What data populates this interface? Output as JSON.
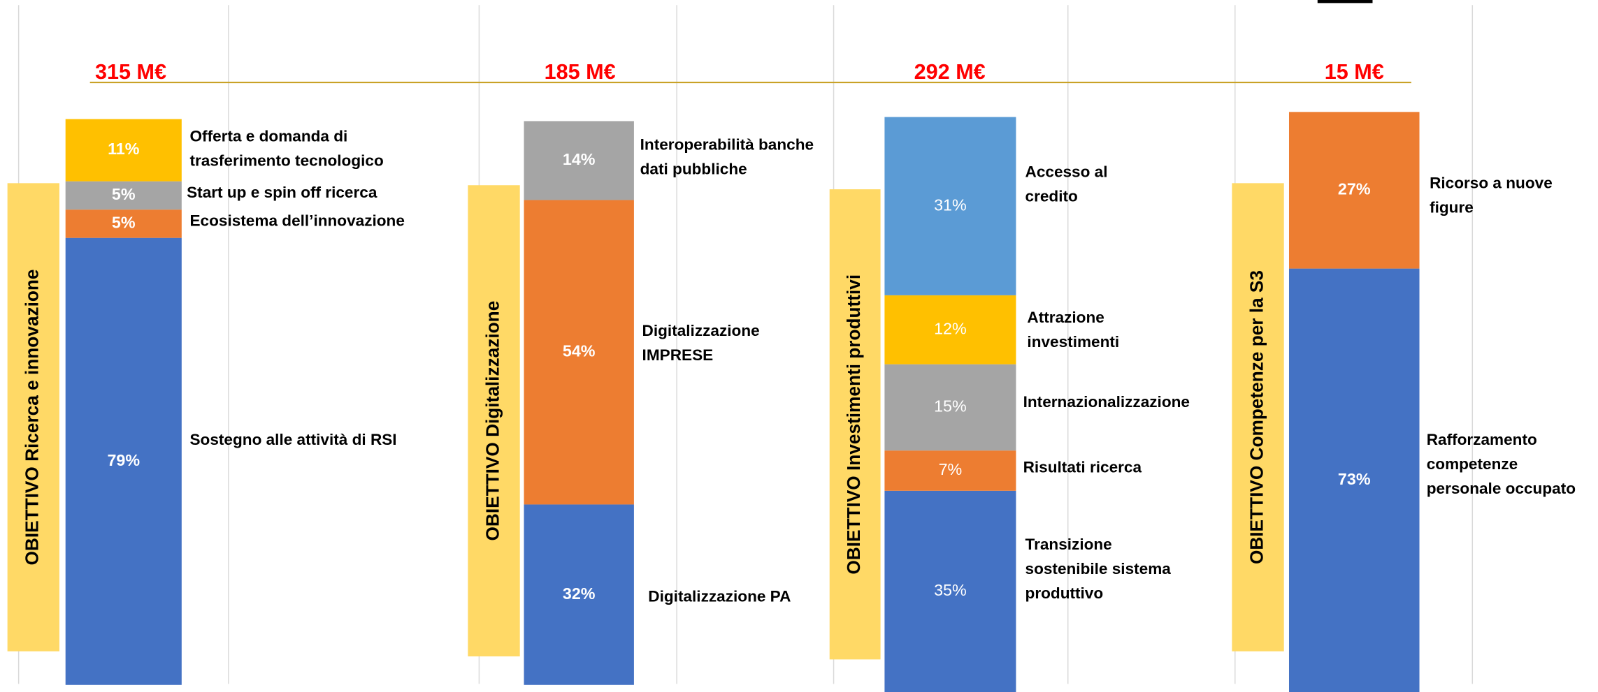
{
  "chart_data": [
    {
      "type": "stacked_bar",
      "title": "315 M€",
      "objective": "OBIETTIVO Ricerca e innovazione",
      "series": [
        {
          "name": [
            "Sostegno alle attività di RSI"
          ],
          "color": "#4472c4",
          "values": [
            79
          ],
          "value_labels": [
            "79%"
          ]
        },
        {
          "name": [
            "Ecosistema dell’innovazione"
          ],
          "color": "#ed7d31",
          "values": [
            5
          ],
          "value_labels": [
            "5%"
          ]
        },
        {
          "name": [
            "Start up e spin off ricerca"
          ],
          "color": "#a5a5a5",
          "values": [
            5
          ],
          "value_labels": [
            "5%"
          ]
        },
        {
          "name": [
            "Offerta e domanda di",
            "trasferimento tecnologico"
          ],
          "color": "#ffc000",
          "values": [
            11
          ],
          "value_labels": [
            "11%"
          ]
        }
      ]
    },
    {
      "type": "stacked_bar",
      "title": "185 M€",
      "objective": "OBIETTIVO Digitalizzazione",
      "series": [
        {
          "name": [
            "Digitalizzazione PA"
          ],
          "color": "#4472c4",
          "values": [
            32
          ],
          "value_labels": [
            "32%"
          ]
        },
        {
          "name": [
            "Digitalizzazione",
            "IMPRESE"
          ],
          "color": "#ed7d31",
          "values": [
            54
          ],
          "value_labels": [
            "54%"
          ]
        },
        {
          "name": [
            "Interoperabilità banche",
            "dati pubbliche"
          ],
          "color": "#a5a5a5",
          "values": [
            14
          ],
          "value_labels": [
            "14%"
          ]
        }
      ]
    },
    {
      "type": "stacked_bar",
      "title": "292 M€",
      "objective": "OBIETTIVO Investimenti produttivi",
      "series": [
        {
          "name": [
            "Transizione",
            "sostenibile sistema",
            "produttivo"
          ],
          "color": "#4472c4",
          "values": [
            35
          ],
          "value_labels": [
            "35%"
          ]
        },
        {
          "name": [
            "Risultati ricerca"
          ],
          "color": "#ed7d31",
          "values": [
            7
          ],
          "value_labels": [
            "7%"
          ]
        },
        {
          "name": [
            "Internazionalizzazione"
          ],
          "color": "#a5a5a5",
          "values": [
            15
          ],
          "value_labels": [
            "15%"
          ]
        },
        {
          "name": [
            "Attrazione",
            "investimenti"
          ],
          "color": "#ffc000",
          "values": [
            12
          ],
          "value_labels": [
            "12%"
          ]
        },
        {
          "name": [
            "Accesso al",
            "credito"
          ],
          "color": "#5b9bd5",
          "values": [
            31
          ],
          "value_labels": [
            "31%"
          ]
        }
      ]
    },
    {
      "type": "stacked_bar",
      "title": "15 M€",
      "objective": "OBIETTIVO Competenze per la S3",
      "series": [
        {
          "name": [
            "Rafforzamento",
            "competenze",
            "personale occupato"
          ],
          "color": "#4472c4",
          "values": [
            73
          ],
          "value_labels": [
            "73%"
          ]
        },
        {
          "name": [
            "Ricorso a nuove",
            "figure"
          ],
          "color": "#ed7d31",
          "values": [
            27
          ],
          "value_labels": [
            "27%"
          ]
        }
      ]
    }
  ]
}
